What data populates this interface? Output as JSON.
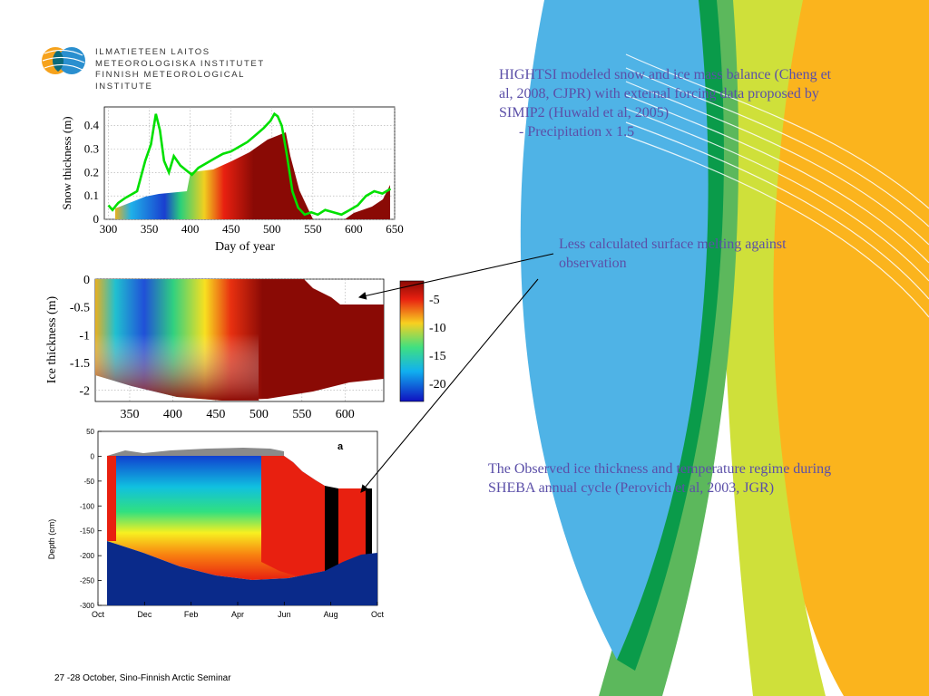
{
  "slide": {
    "text1": "HIGHTSI modeled snow and ice mass balance (Cheng et al, 2008, CJPR) with external forcing data proposed by SIMIP2 (Huwald et al, 2005)",
    "text1_bullet": "- Precipitation x 1.5",
    "text2": "Less calculated surface melting against observation",
    "text3": "The Observed ice thickness and temperature regime during SHEBA annual cycle (Perovich et al, 2003, JGR)",
    "footer": "27 -28 October, Sino-Finnish Arctic Seminar",
    "text_color": "#5b4fa8"
  },
  "logo": {
    "line1": "ILMATIETEEN LAITOS",
    "line2": "METEOROLOGISKA INSTITUTET",
    "line3": "FINNISH METEOROLOGICAL INSTITUTE",
    "icon": "globe-icon"
  },
  "colors": {
    "blue_band": "#4fb3e6",
    "green_band": "#5cb85c",
    "lime_band": "#cfe03a",
    "orange_band": "#fbb41d",
    "dark_green": "#0a9b4a"
  },
  "chart_data": [
    {
      "type": "line",
      "xlabel": "Day of year",
      "ylabel": "Snow thickness (m)",
      "xticks": [
        "300",
        "350",
        "400",
        "450",
        "500",
        "550",
        "600",
        "650"
      ],
      "yticks": [
        "0",
        "0.1",
        "0.2",
        "0.3",
        "0.4"
      ],
      "xlim": [
        295,
        650
      ],
      "ylim": [
        0,
        0.48
      ],
      "grid": true,
      "series": [
        {
          "color": "#00e000",
          "x": [
            300,
            305,
            312,
            320,
            335,
            345,
            352,
            358,
            363,
            368,
            374,
            380,
            388,
            395,
            402,
            410,
            420,
            430,
            440,
            450,
            460,
            470,
            480,
            490,
            498,
            503,
            507,
            512,
            518,
            525,
            532,
            540,
            548,
            556,
            565,
            575,
            585,
            595,
            605,
            615,
            625,
            635,
            645
          ],
          "y": [
            0.06,
            0.04,
            0.07,
            0.09,
            0.12,
            0.25,
            0.32,
            0.45,
            0.38,
            0.25,
            0.2,
            0.27,
            0.23,
            0.21,
            0.19,
            0.22,
            0.24,
            0.26,
            0.28,
            0.29,
            0.31,
            0.33,
            0.36,
            0.39,
            0.42,
            0.45,
            0.44,
            0.4,
            0.28,
            0.12,
            0.05,
            0.02,
            0.03,
            0.02,
            0.04,
            0.03,
            0.02,
            0.04,
            0.06,
            0.1,
            0.12,
            0.11,
            0.13
          ]
        }
      ]
    },
    {
      "type": "heatmap",
      "ylabel": "Ice thickness (m)",
      "xticks": [
        "350",
        "400",
        "450",
        "500",
        "550",
        "600"
      ],
      "yticks": [
        "0",
        "-0.5",
        "-1",
        "-1.5",
        "-2"
      ],
      "xlim": [
        310,
        645
      ],
      "ylim": [
        -2.2,
        0
      ],
      "colorbar_ticks": [
        "-5",
        "-10",
        "-15",
        "-20"
      ]
    },
    {
      "type": "heatmap",
      "ylabel": "Depth (cm)",
      "annotation": "a",
      "xticks": [
        "Oct",
        "Dec",
        "Feb",
        "Apr",
        "Jun",
        "Aug",
        "Oct"
      ],
      "yticks": [
        "50",
        "0",
        "-50",
        "-100",
        "-150",
        "-200",
        "-250",
        "-300"
      ],
      "ylim": [
        -300,
        50
      ]
    }
  ]
}
